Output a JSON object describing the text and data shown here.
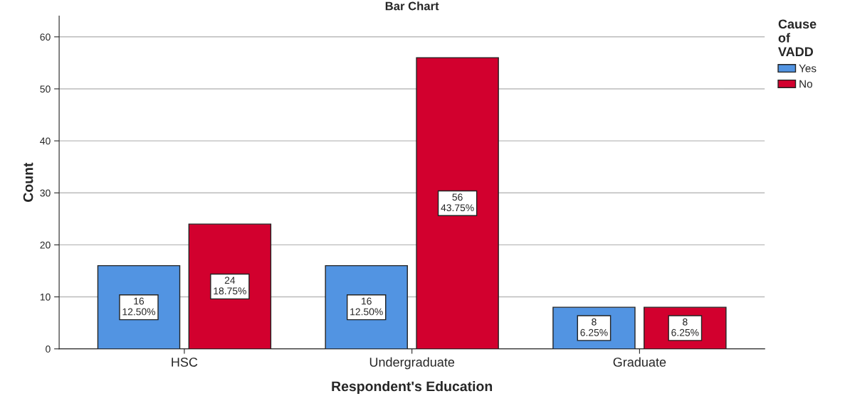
{
  "chart_data": {
    "type": "bar",
    "title": "Bar Chart",
    "xlabel": "Respondent's Education",
    "ylabel": "Count",
    "legend_title": "Cause\nof\nVADD",
    "categories": [
      "HSC",
      "Undergraduate",
      "Graduate"
    ],
    "series": [
      {
        "name": "Yes",
        "color": "#5294e2",
        "values": [
          16,
          16,
          8
        ],
        "value_labels": [
          "16\n12.50%",
          "16\n12.50%",
          "8\n6.25%"
        ]
      },
      {
        "name": "No",
        "color": "#d2002e",
        "values": [
          24,
          56,
          8
        ],
        "value_labels": [
          "24\n18.75%",
          "56\n43.75%",
          "8\n6.25%"
        ]
      }
    ],
    "ylim": [
      0,
      64
    ],
    "yticks": [
      0,
      10,
      20,
      30,
      40,
      50,
      60
    ],
    "grid": "y",
    "legend": "top right"
  }
}
